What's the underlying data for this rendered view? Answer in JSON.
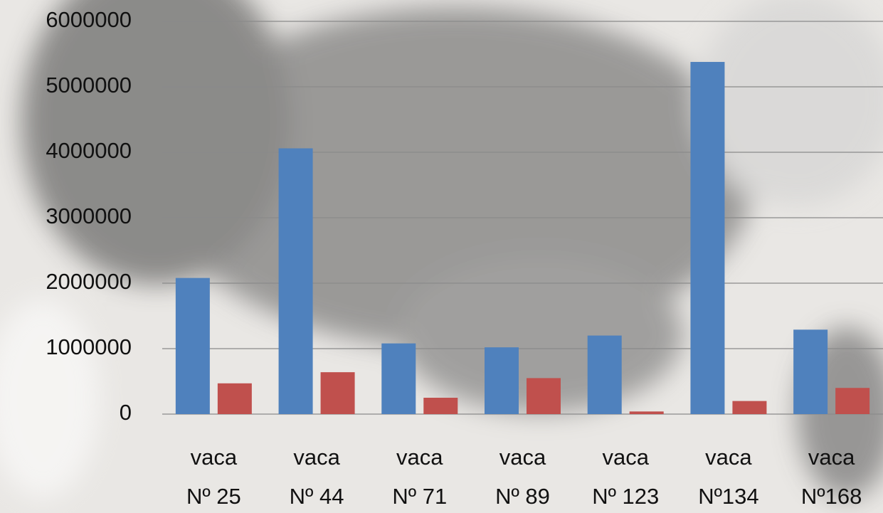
{
  "chart_data": {
    "type": "bar",
    "categories": [
      [
        "vaca",
        "Nº 25"
      ],
      [
        "vaca",
        "Nº 44"
      ],
      [
        "vaca",
        "Nº 71"
      ],
      [
        "vaca",
        "Nº 89"
      ],
      [
        "vaca",
        "Nº 123"
      ],
      [
        "vaca",
        "Nº134"
      ],
      [
        "vaca",
        "Nº168"
      ]
    ],
    "series": [
      {
        "color": "#4f81bd",
        "values": [
          2080000,
          4060000,
          1080000,
          1020000,
          1200000,
          5380000,
          1290000
        ]
      },
      {
        "color": "#c0504d",
        "values": [
          470000,
          640000,
          250000,
          550000,
          40000,
          200000,
          400000
        ]
      }
    ],
    "ylim": [
      0,
      6000000
    ],
    "yticks": [
      0,
      1000000,
      2000000,
      3000000,
      4000000,
      5000000,
      6000000
    ],
    "grid": true
  }
}
